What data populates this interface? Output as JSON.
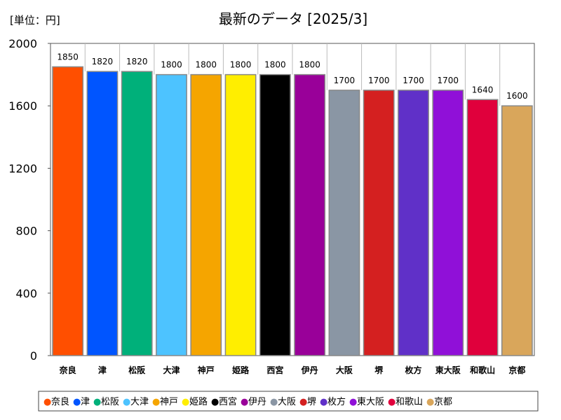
{
  "chart_data": {
    "type": "bar",
    "title": "最新のデータ [2025/3]",
    "unit_label": "[単位：円]",
    "categories": [
      "奈良",
      "津",
      "松阪",
      "大津",
      "神戸",
      "姫路",
      "西宮",
      "伊丹",
      "大阪",
      "堺",
      "枚方",
      "東大阪",
      "和歌山",
      "京都"
    ],
    "values": [
      1850,
      1820,
      1820,
      1800,
      1800,
      1800,
      1800,
      1800,
      1700,
      1700,
      1700,
      1700,
      1640,
      1600
    ],
    "value_labels": [
      "1850",
      "1820",
      "1820",
      "1800",
      "1800",
      "1800",
      "1800",
      "1800",
      "1700",
      "1700",
      "1700",
      "1700",
      "1640",
      "1600"
    ],
    "colors": [
      "#ff4f00",
      "#0055ff",
      "#00b07a",
      "#4dc3ff",
      "#f5a500",
      "#ffee00",
      "#000000",
      "#990099",
      "#8a96a4",
      "#d42020",
      "#6030c8",
      "#9010d8",
      "#e0003c",
      "#d9a65b"
    ],
    "ylim": [
      0,
      2000
    ],
    "yticks": [
      0,
      400,
      800,
      1200,
      1600,
      2000
    ],
    "ytick_labels": [
      "0",
      "400",
      "800",
      "1200",
      "1600",
      "2000"
    ],
    "xlabel": "",
    "ylabel": "",
    "grid": false,
    "legend_position": "bottom",
    "legend_marker": "●"
  }
}
